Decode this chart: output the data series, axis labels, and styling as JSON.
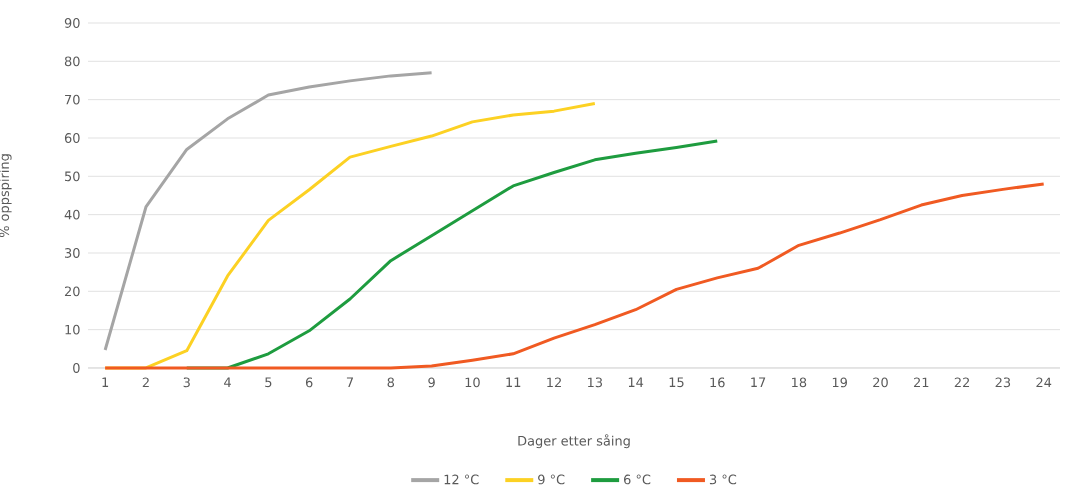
{
  "chart_data": {
    "type": "line",
    "xlabel": "Dager etter såing",
    "ylabel": "% oppspiring",
    "xlim": [
      0.58,
      24.4
    ],
    "ylim": [
      0,
      90
    ],
    "xticks": [
      1,
      2,
      3,
      4,
      5,
      6,
      7,
      8,
      9,
      10,
      11,
      12,
      13,
      14,
      15,
      16,
      17,
      18,
      19,
      20,
      21,
      22,
      23,
      24
    ],
    "yticks": [
      0,
      10,
      20,
      30,
      40,
      50,
      60,
      70,
      80,
      90
    ],
    "grid": "y",
    "legend": "bottom",
    "marker": "none",
    "line_style": "solid",
    "series": [
      {
        "name": "12 °C",
        "color": "#a5a5a5",
        "x": [
          1,
          2,
          3,
          4,
          5,
          6,
          7,
          8,
          9
        ],
        "values": [
          4.7,
          42,
          57,
          65,
          71.2,
          73.3,
          74.9,
          76.2,
          77
        ]
      },
      {
        "name": "9 °C",
        "color": "#fcd123",
        "x": [
          1,
          2,
          3,
          4,
          5,
          6,
          7,
          8,
          9,
          10,
          11,
          12,
          13
        ],
        "values": [
          0,
          0,
          4.5,
          24,
          38.5,
          46.5,
          55,
          57.8,
          60.5,
          64.2,
          66,
          67,
          69
        ]
      },
      {
        "name": "6 °C",
        "color": "#1e9c3f",
        "x": [
          3,
          4,
          5,
          6,
          7,
          8,
          9,
          10,
          11,
          12,
          13,
          14,
          15,
          16
        ],
        "values": [
          0,
          0,
          3.7,
          9.7,
          18,
          28,
          34.5,
          41,
          47.5,
          51,
          54.3,
          56,
          57.5,
          59.2
        ]
      },
      {
        "name": "3 °C",
        "color": "#f05a22",
        "x": [
          1,
          2,
          3,
          4,
          5,
          6,
          7,
          8,
          9,
          10,
          11,
          12,
          13,
          14,
          15,
          16,
          17,
          18,
          19,
          20,
          21,
          22,
          23,
          24
        ],
        "values": [
          0,
          0,
          0,
          0,
          0,
          0,
          0,
          0,
          0.5,
          2,
          3.7,
          7.8,
          11.3,
          15.2,
          20.5,
          23.5,
          26,
          32,
          35.2,
          38.7,
          42.5,
          45,
          46.6,
          48
        ]
      }
    ]
  }
}
